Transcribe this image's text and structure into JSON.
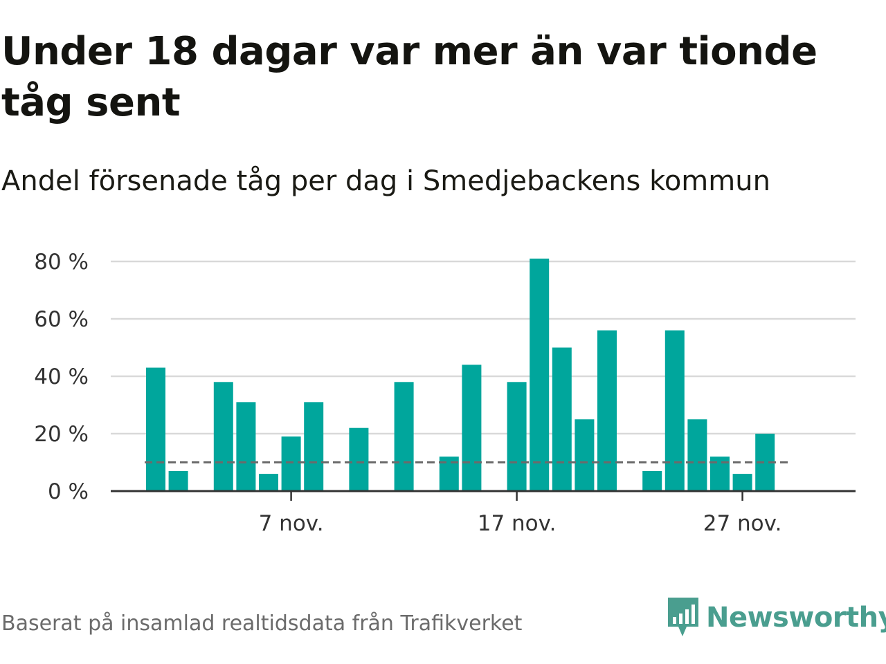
{
  "header": {
    "title": "Under 18 dagar var mer än var tionde tåg sent",
    "subtitle": "Andel försenade tåg per dag i Smedjebackens kommun"
  },
  "footer": {
    "source": "Baserat på insamlad realtidsdata från Trafikverket",
    "logo_text": "Newsworthy"
  },
  "colors": {
    "bar": "#00a69c",
    "reference_line": "#6b6b6b",
    "grid": "#d9d9d9",
    "logo": "#4a9e8f"
  },
  "chart_data": {
    "type": "bar",
    "x": [
      "2024-11-01",
      "2024-11-02",
      "2024-11-03",
      "2024-11-04",
      "2024-11-05",
      "2024-11-06",
      "2024-11-07",
      "2024-11-08",
      "2024-11-09",
      "2024-11-10",
      "2024-11-11",
      "2024-11-12",
      "2024-11-13",
      "2024-11-14",
      "2024-11-15",
      "2024-11-16",
      "2024-11-17",
      "2024-11-18",
      "2024-11-19",
      "2024-11-20",
      "2024-11-21",
      "2024-11-22",
      "2024-11-23",
      "2024-11-24",
      "2024-11-25",
      "2024-11-26",
      "2024-11-27",
      "2024-11-28",
      "2024-11-29"
    ],
    "values": [
      43,
      7,
      null,
      38,
      31,
      6,
      19,
      31,
      null,
      22,
      null,
      38,
      null,
      12,
      44,
      null,
      38,
      81,
      50,
      25,
      56,
      null,
      7,
      56,
      25,
      12,
      6,
      20,
      null
    ],
    "reference_line": 10,
    "ylim": [
      0,
      80
    ],
    "yticks": [
      0,
      20,
      40,
      60,
      80
    ],
    "ytick_labels": [
      "0 %",
      "20 %",
      "40 %",
      "60 %",
      "80 %"
    ],
    "xticks": [
      {
        "date": "2024-11-07",
        "label": "7 nov."
      },
      {
        "date": "2024-11-17",
        "label": "17 nov."
      },
      {
        "date": "2024-11-27",
        "label": "27 nov."
      }
    ],
    "grid": true,
    "legend": "none"
  }
}
